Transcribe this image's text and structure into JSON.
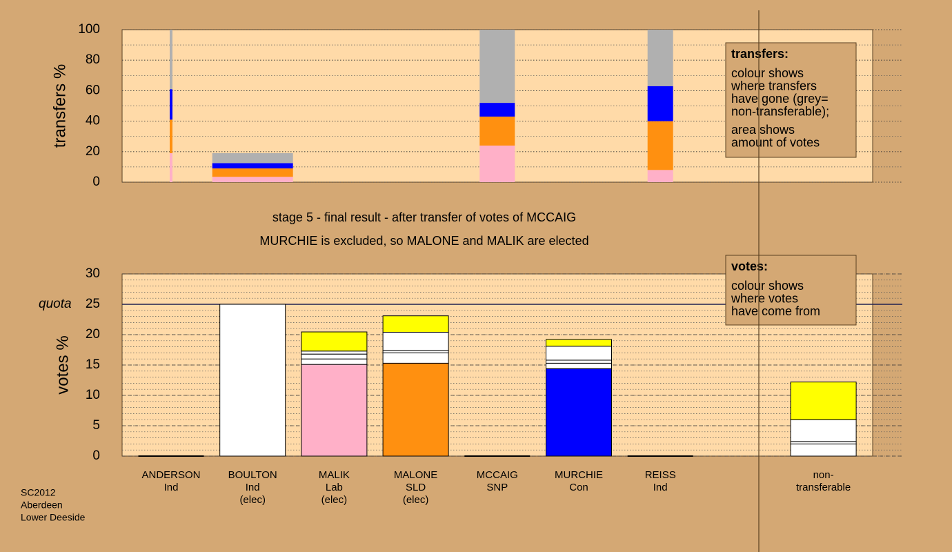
{
  "chart_data": [
    {
      "type": "bar",
      "stacked": true,
      "ylabel": "transfers %",
      "ylim": [
        0,
        100
      ],
      "yticks": [
        0,
        20,
        40,
        60,
        80,
        100
      ],
      "minor_grid": 10,
      "amounts": [
        0.2,
        5.85,
        null,
        null,
        2.55,
        null,
        1.85,
        null,
        null
      ],
      "series": [
        {
          "color": "#ffb0c8",
          "values": [
            19,
            3.5,
            null,
            null,
            24,
            null,
            8,
            null,
            null
          ]
        },
        {
          "color": "#ff9010",
          "values": [
            22,
            5.5,
            null,
            null,
            19,
            null,
            32,
            null,
            null
          ]
        },
        {
          "color": "#0000ff",
          "values": [
            20,
            3.5,
            null,
            null,
            9,
            null,
            23,
            null,
            null
          ]
        },
        {
          "color": "#b0b0b0",
          "values": [
            39,
            6.5,
            null,
            null,
            48,
            null,
            37,
            null,
            null
          ]
        }
      ],
      "annotation": {
        "heading": "transfers:",
        "lines": [
          "colour shows",
          "where transfers",
          "have gone (grey=",
          "non-transferable);",
          "area shows",
          "amount of votes"
        ]
      }
    },
    {
      "type": "bar",
      "stacked": true,
      "title": "stage 5 - final result - after transfer of votes of MCCAIG",
      "subtitle": "MURCHIE is excluded, so MALONE and MALIK are elected",
      "ylabel": "votes %",
      "categories": [
        [
          "ANDERSON",
          "Ind"
        ],
        [
          "BOULTON",
          "Ind",
          "(elec)"
        ],
        [
          "MALIK",
          "Lab",
          "(elec)"
        ],
        [
          "MALONE",
          "SLD",
          "(elec)"
        ],
        [
          "MCCAIG",
          "SNP"
        ],
        [
          "MURCHIE",
          "Con"
        ],
        [
          "REISS",
          "Ind"
        ],
        null,
        [
          "non-",
          "transferable"
        ]
      ],
      "ylim": [
        0,
        30
      ],
      "yticks": [
        0,
        5,
        10,
        15,
        20,
        25,
        30
      ],
      "minor_grid": 1,
      "quota": {
        "label": "quota",
        "value": 25
      },
      "series": [
        {
          "colors": [
            "#ffffff",
            "#ffffff",
            "#ffb0c8",
            "#ff9010",
            "#ffffff",
            "#0000ff",
            "#ffffff",
            null,
            "#ffffff"
          ],
          "values": [
            0,
            25,
            15.1,
            15.3,
            0,
            14.4,
            0,
            null,
            2.0
          ]
        },
        {
          "color": "#ffffff",
          "values": [
            null,
            null,
            0.9,
            1.7,
            null,
            0.9,
            null,
            null,
            0.4
          ]
        },
        {
          "color": "#ffffff",
          "values": [
            null,
            null,
            0.8,
            0.4,
            null,
            0.5,
            null,
            null,
            3.6
          ]
        },
        {
          "color": "#ffffff",
          "values": [
            null,
            null,
            0.5,
            3.0,
            null,
            2.3,
            null,
            null,
            null
          ]
        },
        {
          "color": "#ffff00",
          "values": [
            null,
            null,
            3.15,
            2.7,
            null,
            1.1,
            null,
            null,
            6.2
          ]
        }
      ],
      "annotation": {
        "heading": "votes:",
        "lines": [
          "colour shows",
          "where votes",
          "have come from"
        ]
      }
    }
  ],
  "footer": [
    "SC2012",
    "Aberdeen",
    "Lower Deeside"
  ]
}
